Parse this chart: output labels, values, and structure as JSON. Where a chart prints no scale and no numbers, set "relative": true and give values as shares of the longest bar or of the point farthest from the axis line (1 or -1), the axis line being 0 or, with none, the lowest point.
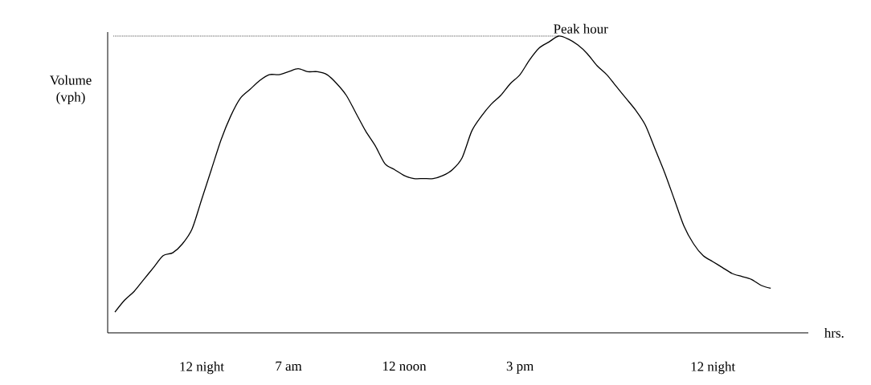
{
  "chart_data": {
    "type": "line",
    "relative": true,
    "xlabel": "hrs.",
    "ylabel": "Volume (vph)",
    "color": "#000000",
    "line_style": "solid",
    "marker": "none",
    "categories": [
      null,
      null,
      null,
      null,
      null,
      null,
      null,
      null,
      null,
      "12 night",
      null,
      null,
      null,
      null,
      null,
      null,
      null,
      null,
      "7 am",
      null,
      null,
      null,
      null,
      null,
      null,
      null,
      null,
      null,
      null,
      null,
      "12 noon",
      null,
      null,
      null,
      null,
      null,
      null,
      null,
      null,
      null,
      null,
      null,
      "3 pm",
      null,
      null,
      null,
      null,
      null,
      null,
      null,
      null,
      null,
      null,
      null,
      null,
      null,
      null,
      null,
      null,
      null,
      null,
      null,
      "12 night",
      null,
      null,
      null,
      null,
      null,
      null
    ],
    "values": [
      0.07,
      0.11,
      0.14,
      0.18,
      0.22,
      0.26,
      0.27,
      0.3,
      0.35,
      0.45,
      0.55,
      0.65,
      0.73,
      0.79,
      0.82,
      0.85,
      0.87,
      0.87,
      0.88,
      0.89,
      0.88,
      0.88,
      0.87,
      0.84,
      0.8,
      0.74,
      0.68,
      0.63,
      0.57,
      0.55,
      0.53,
      0.52,
      0.52,
      0.52,
      0.53,
      0.55,
      0.59,
      0.68,
      0.73,
      0.77,
      0.8,
      0.84,
      0.87,
      0.92,
      0.96,
      0.98,
      1.0,
      0.99,
      0.97,
      0.94,
      0.9,
      0.87,
      0.83,
      0.79,
      0.75,
      0.7,
      0.62,
      0.54,
      0.45,
      0.36,
      0.3,
      0.26,
      0.24,
      0.22,
      0.2,
      0.19,
      0.18,
      0.16,
      0.15
    ],
    "ref_lines": [
      {
        "axis": "y",
        "value": 1.0,
        "label": "Peak hour",
        "line_style": "dotted"
      }
    ]
  }
}
